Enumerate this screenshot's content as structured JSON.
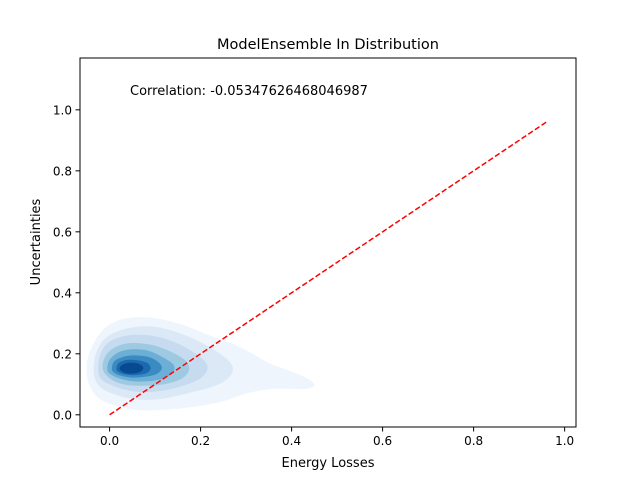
{
  "chart_data": {
    "type": "kde-density",
    "title": "ModelEnsemble In Distribution",
    "xlabel": "Energy Losses",
    "ylabel": "Uncertainties",
    "annotation": "Correlation: -0.05347626468046987",
    "xlim": [
      -0.065,
      1.025
    ],
    "ylim": [
      -0.04,
      1.17
    ],
    "xticks": [
      0.0,
      0.2,
      0.4,
      0.6,
      0.8,
      1.0
    ],
    "xtick_labels": [
      "0.0",
      "0.2",
      "0.4",
      "0.6",
      "0.8",
      "1.0"
    ],
    "yticks": [
      0.0,
      0.2,
      0.4,
      0.6,
      0.8,
      1.0
    ],
    "ytick_labels": [
      "0.0",
      "0.2",
      "0.4",
      "0.6",
      "0.8",
      "1.0"
    ],
    "grid": false,
    "reference_line": {
      "x": [
        0.0,
        0.96
      ],
      "y": [
        0.0,
        0.96
      ],
      "color": "#ff0000",
      "style": "dashed"
    },
    "density_levels": [
      {
        "level": 1,
        "color": "#eef5fc",
        "contour": [
          [
            -0.05,
            0.15
          ],
          [
            -0.045,
            0.2
          ],
          [
            -0.02,
            0.27
          ],
          [
            0.02,
            0.31
          ],
          [
            0.08,
            0.32
          ],
          [
            0.15,
            0.3
          ],
          [
            0.22,
            0.26
          ],
          [
            0.29,
            0.22
          ],
          [
            0.35,
            0.17
          ],
          [
            0.42,
            0.13
          ],
          [
            0.45,
            0.1
          ],
          [
            0.43,
            0.085
          ],
          [
            0.36,
            0.085
          ],
          [
            0.3,
            0.07
          ],
          [
            0.25,
            0.045
          ],
          [
            0.18,
            0.025
          ],
          [
            0.1,
            0.015
          ],
          [
            0.04,
            0.02
          ],
          [
            -0.02,
            0.05
          ],
          [
            -0.045,
            0.1
          ]
        ]
      },
      {
        "level": 2,
        "color": "#dbe9f6",
        "contour": [
          [
            -0.035,
            0.15
          ],
          [
            -0.03,
            0.2
          ],
          [
            -0.01,
            0.25
          ],
          [
            0.03,
            0.28
          ],
          [
            0.09,
            0.29
          ],
          [
            0.15,
            0.27
          ],
          [
            0.21,
            0.23
          ],
          [
            0.26,
            0.18
          ],
          [
            0.27,
            0.14
          ],
          [
            0.24,
            0.1
          ],
          [
            0.17,
            0.07
          ],
          [
            0.1,
            0.05
          ],
          [
            0.04,
            0.055
          ],
          [
            -0.01,
            0.08
          ],
          [
            -0.03,
            0.11
          ]
        ]
      },
      {
        "level": 3,
        "color": "#c6dbef",
        "contour": [
          [
            -0.025,
            0.15
          ],
          [
            -0.02,
            0.2
          ],
          [
            0.0,
            0.24
          ],
          [
            0.04,
            0.26
          ],
          [
            0.09,
            0.26
          ],
          [
            0.14,
            0.24
          ],
          [
            0.19,
            0.2
          ],
          [
            0.215,
            0.16
          ],
          [
            0.2,
            0.12
          ],
          [
            0.15,
            0.09
          ],
          [
            0.09,
            0.075
          ],
          [
            0.04,
            0.08
          ],
          [
            0.0,
            0.1
          ],
          [
            -0.02,
            0.12
          ]
        ]
      },
      {
        "level": 4,
        "color": "#9ecae1",
        "contour": [
          [
            -0.015,
            0.15
          ],
          [
            -0.01,
            0.19
          ],
          [
            0.01,
            0.22
          ],
          [
            0.045,
            0.235
          ],
          [
            0.09,
            0.23
          ],
          [
            0.13,
            0.21
          ],
          [
            0.165,
            0.18
          ],
          [
            0.175,
            0.15
          ],
          [
            0.16,
            0.12
          ],
          [
            0.12,
            0.1
          ],
          [
            0.07,
            0.095
          ],
          [
            0.03,
            0.1
          ],
          [
            0.0,
            0.12
          ]
        ]
      },
      {
        "level": 5,
        "color": "#6baed6",
        "contour": [
          [
            -0.005,
            0.15
          ],
          [
            0.0,
            0.18
          ],
          [
            0.02,
            0.205
          ],
          [
            0.05,
            0.215
          ],
          [
            0.085,
            0.21
          ],
          [
            0.115,
            0.19
          ],
          [
            0.14,
            0.165
          ],
          [
            0.14,
            0.14
          ],
          [
            0.12,
            0.12
          ],
          [
            0.085,
            0.11
          ],
          [
            0.05,
            0.11
          ],
          [
            0.02,
            0.12
          ],
          [
            0.0,
            0.135
          ]
        ]
      },
      {
        "level": 6,
        "color": "#3b8bc2",
        "contour": [
          [
            0.005,
            0.15
          ],
          [
            0.01,
            0.175
          ],
          [
            0.03,
            0.19
          ],
          [
            0.055,
            0.195
          ],
          [
            0.085,
            0.19
          ],
          [
            0.105,
            0.175
          ],
          [
            0.115,
            0.155
          ],
          [
            0.105,
            0.135
          ],
          [
            0.08,
            0.125
          ],
          [
            0.05,
            0.122
          ],
          [
            0.025,
            0.128
          ],
          [
            0.01,
            0.138
          ]
        ]
      },
      {
        "level": 7,
        "color": "#1b69ae",
        "contour": [
          [
            0.015,
            0.15
          ],
          [
            0.02,
            0.17
          ],
          [
            0.04,
            0.18
          ],
          [
            0.065,
            0.178
          ],
          [
            0.085,
            0.168
          ],
          [
            0.09,
            0.15
          ],
          [
            0.08,
            0.136
          ],
          [
            0.055,
            0.13
          ],
          [
            0.035,
            0.132
          ],
          [
            0.02,
            0.14
          ]
        ]
      },
      {
        "level": 8,
        "color": "#084a91",
        "contour": [
          [
            0.022,
            0.15
          ],
          [
            0.028,
            0.164
          ],
          [
            0.045,
            0.171
          ],
          [
            0.063,
            0.168
          ],
          [
            0.074,
            0.156
          ],
          [
            0.068,
            0.141
          ],
          [
            0.05,
            0.135
          ],
          [
            0.033,
            0.138
          ]
        ]
      }
    ]
  }
}
